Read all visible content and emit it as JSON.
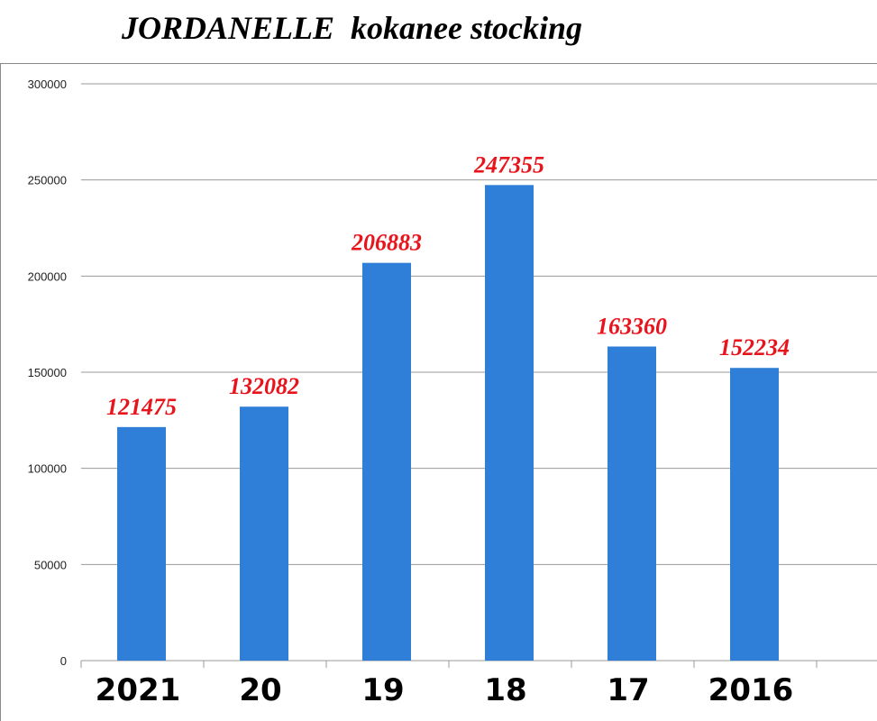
{
  "chart_data": {
    "type": "bar",
    "title": "JORDANELLE  kokanee stocking",
    "categories": [
      "2021",
      "20",
      "19",
      "18",
      "17",
      "2016"
    ],
    "values": [
      121475,
      132082,
      206883,
      247355,
      163360,
      152234
    ],
    "data_labels": [
      "121475",
      "132082",
      "206883",
      "247355",
      "163360",
      "152234"
    ],
    "ylim": [
      0,
      300000
    ],
    "yticks": [
      0,
      50000,
      100000,
      150000,
      200000,
      250000,
      300000
    ],
    "ytick_labels": [
      "0",
      "50000",
      "100000",
      "150000",
      "200000",
      "250000",
      "300000"
    ],
    "xlabel": "",
    "ylabel": "",
    "grid": true,
    "colors": {
      "bar": "#2f7ed8",
      "data_label": "#e8141c",
      "grid": "#9a9a9a"
    }
  }
}
